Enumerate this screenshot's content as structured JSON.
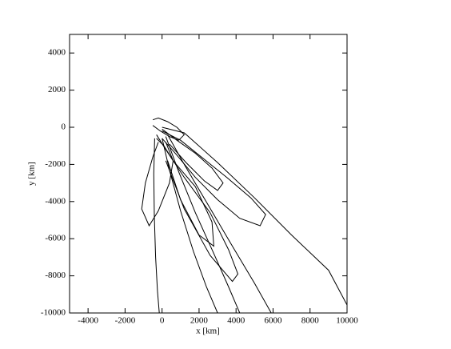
{
  "chart_data": {
    "type": "line",
    "xlabel": "x [km]",
    "ylabel": "y [km]",
    "xlim": [
      -5000,
      10000
    ],
    "ylim": [
      -10000,
      5000
    ],
    "xticks": [
      -4000,
      -2000,
      0,
      2000,
      4000,
      6000,
      8000,
      10000
    ],
    "yticks": [
      -10000,
      -8000,
      -6000,
      -4000,
      -2000,
      0,
      2000,
      4000
    ],
    "series": [
      {
        "color": "#000000",
        "x": [
          0,
          1200,
          3000,
          5000,
          7000,
          9000,
          10000
        ],
        "values": [
          0,
          -300,
          -1900,
          -3800,
          -5800,
          -7700,
          -9570
        ]
      },
      {
        "color": "#000000",
        "x": [
          0,
          1000,
          2000,
          3500,
          4800,
          5600,
          5300,
          4200,
          3000,
          1800,
          800,
          0
        ],
        "values": [
          -200,
          -700,
          -1500,
          -2700,
          -3800,
          -4700,
          -5300,
          -4900,
          -3900,
          -2700,
          -1500,
          -600
        ]
      },
      {
        "color": "#000000",
        "x": [
          300,
          1200,
          2500,
          3800,
          5000,
          5900
        ],
        "values": [
          -400,
          -2000,
          -4200,
          -6400,
          -8400,
          -10000
        ]
      },
      {
        "color": "#000000",
        "x": [
          200,
          900,
          1800,
          2800,
          3600,
          4200
        ],
        "values": [
          -500,
          -2400,
          -4600,
          -6800,
          -8600,
          -10000
        ]
      },
      {
        "color": "#000000",
        "x": [
          -400,
          -450,
          -420,
          -350,
          -250,
          -150
        ],
        "values": [
          -600,
          -2500,
          -4800,
          -7000,
          -8800,
          -10000
        ]
      },
      {
        "color": "#000000",
        "x": [
          0,
          400,
          1000,
          1700,
          2400,
          3000
        ],
        "values": [
          -600,
          -2300,
          -4500,
          -6700,
          -8600,
          -10000
        ]
      },
      {
        "color": "#000000",
        "x": [
          200,
          600,
          1800,
          2700,
          2800,
          2000,
          1000,
          300
        ],
        "values": [
          -800,
          -1800,
          -3200,
          -5100,
          -6400,
          -5800,
          -3900,
          -1800
        ]
      },
      {
        "color": "#000000",
        "x": [
          -300,
          100,
          600,
          400,
          -200,
          -700,
          -1100,
          -900,
          -500,
          -200
        ],
        "values": [
          -600,
          -1000,
          -1800,
          -3000,
          -4500,
          -5300,
          -4400,
          -3000,
          -1600,
          -800
        ]
      },
      {
        "color": "#000000",
        "x": [
          -500,
          -200,
          300,
          800,
          1200,
          900,
          400,
          -100,
          -500
        ],
        "values": [
          400,
          500,
          300,
          0,
          -400,
          -700,
          -500,
          -200,
          100
        ]
      },
      {
        "color": "#000000",
        "x": [
          0,
          800,
          1800,
          2700,
          3300,
          3000,
          2300,
          1300,
          400
        ],
        "values": [
          -100,
          -700,
          -1400,
          -2200,
          -3000,
          -3400,
          -2900,
          -1900,
          -900
        ]
      },
      {
        "color": "#000000",
        "x": [
          -300,
          200,
          1200,
          2600,
          3600,
          4100,
          3800,
          2600,
          1200,
          200
        ],
        "values": [
          -400,
          -1200,
          -2700,
          -4600,
          -6600,
          -7900,
          -8300,
          -6900,
          -4400,
          -1800
        ]
      }
    ]
  }
}
